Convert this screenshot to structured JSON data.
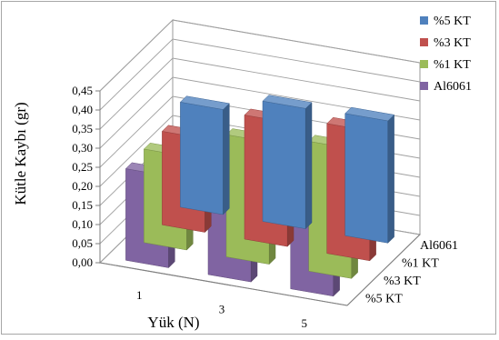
{
  "chart_data": {
    "type": "bar",
    "subtype": "3d-clustered-column",
    "title": "",
    "xlabel": "Yük (N)",
    "ylabel": "Kütle Kaybı (gr)",
    "categories": [
      "1",
      "3",
      "5"
    ],
    "yticks": [
      "0,00",
      "0,05",
      "0,10",
      "0,15",
      "0,20",
      "0,25",
      "0,30",
      "0,35",
      "0,40",
      "0,45"
    ],
    "ylim": [
      0,
      0.45
    ],
    "grid": true,
    "legend_position": "right",
    "series": [
      {
        "name": "%5 KT",
        "color": "#4f81bd",
        "values": [
          0.275,
          0.315,
          0.32
        ]
      },
      {
        "name": "%3 KT",
        "color": "#c0504d",
        "values": [
          0.245,
          0.325,
          0.34
        ]
      },
      {
        "name": "%1 KT",
        "color": "#9bbb59",
        "values": [
          0.245,
          0.32,
          0.34
        ]
      },
      {
        "name": "Al6061",
        "color": "#8064a2",
        "values": [
          0.24,
          0.355,
          0.385
        ]
      }
    ],
    "depth_labels": [
      "Al6061",
      "%1 KT",
      "%3 KT",
      "%5 KT"
    ]
  }
}
